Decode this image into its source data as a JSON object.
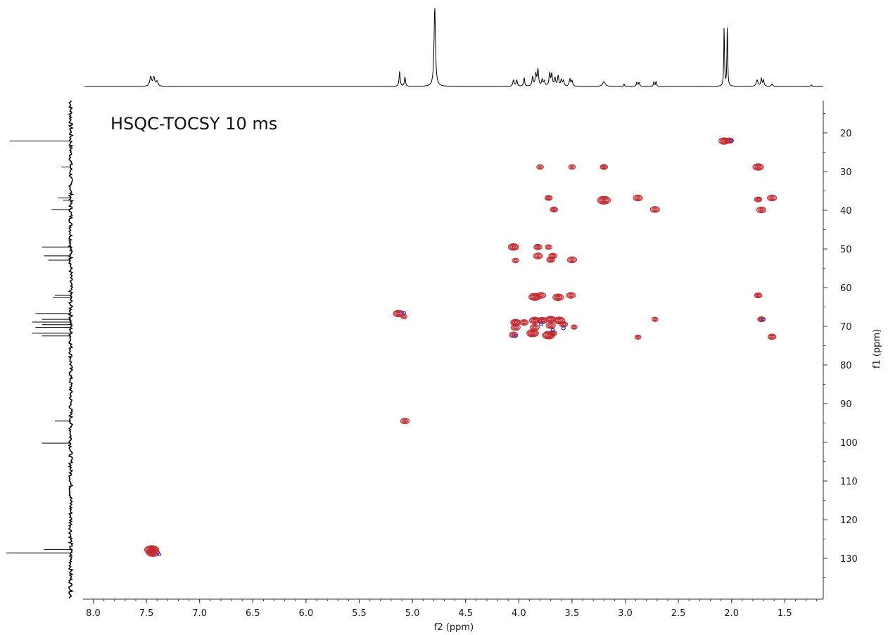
{
  "chart_data": {
    "type": "scatter",
    "subtype": "2D NMR contour plot with projection spectra",
    "title": "HSQC-TOCSY 10 ms",
    "xlabel": "f2 (ppm)",
    "ylabel": "f1 (ppm)",
    "xlim": [
      8.1,
      1.2
    ],
    "ylim": [
      140,
      11
    ],
    "x_reversed": true,
    "x_ticks": [
      8.0,
      7.5,
      7.0,
      6.5,
      6.0,
      5.5,
      5.0,
      4.5,
      4.0,
      3.5,
      3.0,
      2.5,
      2.0,
      1.5
    ],
    "x_tick_labels": [
      "8.0",
      "7.5",
      "7.0",
      "6.5",
      "6.0",
      "5.5",
      "5.0",
      "4.5",
      "4.0",
      "3.5",
      "3.0",
      "2.5",
      "2.0",
      "1.5"
    ],
    "y_ticks": [
      20,
      30,
      40,
      50,
      60,
      70,
      80,
      90,
      100,
      110,
      120,
      130
    ],
    "y_tick_labels": [
      "20",
      "30",
      "40",
      "50",
      "60",
      "70",
      "80",
      "90",
      "100",
      "110",
      "120",
      "130"
    ],
    "grid": false,
    "colors": {
      "positive": "#c0272d",
      "negative": "#2b2bd9",
      "spectrum": "#000000"
    },
    "cross_peaks": [
      {
        "x": 2.07,
        "y": 22.1,
        "s": 1.0
      },
      {
        "x": 2.02,
        "y": 22.0,
        "s": 0.6
      },
      {
        "x": 3.8,
        "y": 28.8,
        "s": 0.4
      },
      {
        "x": 3.5,
        "y": 28.8,
        "s": 0.4
      },
      {
        "x": 3.2,
        "y": 28.8,
        "s": 0.5
      },
      {
        "x": 1.75,
        "y": 28.8,
        "s": 1.0
      },
      {
        "x": 3.72,
        "y": 36.8,
        "s": 0.5
      },
      {
        "x": 3.2,
        "y": 37.4,
        "s": 1.4
      },
      {
        "x": 2.88,
        "y": 36.8,
        "s": 0.8
      },
      {
        "x": 1.75,
        "y": 37.2,
        "s": 0.5
      },
      {
        "x": 1.62,
        "y": 36.8,
        "s": 0.8
      },
      {
        "x": 3.67,
        "y": 39.8,
        "s": 0.5
      },
      {
        "x": 2.72,
        "y": 39.8,
        "s": 0.8
      },
      {
        "x": 1.72,
        "y": 39.9,
        "s": 0.8
      },
      {
        "x": 4.05,
        "y": 49.5,
        "s": 1.0
      },
      {
        "x": 3.82,
        "y": 49.5,
        "s": 0.6
      },
      {
        "x": 3.72,
        "y": 49.5,
        "s": 0.4
      },
      {
        "x": 4.03,
        "y": 53.0,
        "s": 0.4
      },
      {
        "x": 3.82,
        "y": 51.8,
        "s": 0.8
      },
      {
        "x": 3.68,
        "y": 51.8,
        "s": 0.6
      },
      {
        "x": 3.7,
        "y": 52.8,
        "s": 0.6
      },
      {
        "x": 3.5,
        "y": 52.8,
        "s": 0.8
      },
      {
        "x": 3.85,
        "y": 62.4,
        "s": 1.2
      },
      {
        "x": 3.79,
        "y": 62.0,
        "s": 0.8
      },
      {
        "x": 3.63,
        "y": 62.5,
        "s": 1.0
      },
      {
        "x": 3.51,
        "y": 62.0,
        "s": 0.8
      },
      {
        "x": 1.75,
        "y": 62.0,
        "s": 0.5
      },
      {
        "x": 5.13,
        "y": 66.7,
        "s": 1.0
      },
      {
        "x": 5.08,
        "y": 67.5,
        "s": 0.3
      },
      {
        "x": 4.03,
        "y": 69.0,
        "s": 0.9
      },
      {
        "x": 3.95,
        "y": 69.0,
        "s": 0.7
      },
      {
        "x": 3.85,
        "y": 68.5,
        "s": 1.0
      },
      {
        "x": 3.78,
        "y": 68.5,
        "s": 0.9
      },
      {
        "x": 3.7,
        "y": 68.2,
        "s": 0.9
      },
      {
        "x": 3.62,
        "y": 68.5,
        "s": 1.1
      },
      {
        "x": 3.58,
        "y": 69.5,
        "s": 0.6
      },
      {
        "x": 3.48,
        "y": 70.2,
        "s": 0.3
      },
      {
        "x": 4.03,
        "y": 70.3,
        "s": 0.8
      },
      {
        "x": 3.85,
        "y": 70.3,
        "s": 0.8
      },
      {
        "x": 3.7,
        "y": 69.8,
        "s": 0.8
      },
      {
        "x": 2.72,
        "y": 68.2,
        "s": 0.3
      },
      {
        "x": 1.72,
        "y": 68.2,
        "s": 0.5
      },
      {
        "x": 4.05,
        "y": 72.2,
        "s": 0.7
      },
      {
        "x": 3.87,
        "y": 71.8,
        "s": 1.2
      },
      {
        "x": 3.72,
        "y": 72.3,
        "s": 1.3
      },
      {
        "x": 3.68,
        "y": 71.8,
        "s": 0.6
      },
      {
        "x": 2.88,
        "y": 72.8,
        "s": 0.3
      },
      {
        "x": 1.62,
        "y": 72.7,
        "s": 0.6
      },
      {
        "x": 5.07,
        "y": 94.5,
        "s": 0.7
      },
      {
        "x": 7.45,
        "y": 127.8,
        "s": 1.6
      },
      {
        "x": 7.44,
        "y": 128.5,
        "s": 1.4
      }
    ],
    "negative_peaks": [
      {
        "x": 2.0,
        "y": 22.0
      },
      {
        "x": 5.08,
        "y": 66.5
      },
      {
        "x": 4.03,
        "y": 72.5
      },
      {
        "x": 3.79,
        "y": 69.5
      },
      {
        "x": 3.58,
        "y": 70.5
      },
      {
        "x": 1.7,
        "y": 68.2
      },
      {
        "x": 7.38,
        "y": 129.0
      },
      {
        "x": 3.68,
        "y": 71.0
      }
    ],
    "f2_projection_peaks": [
      {
        "x": 7.46,
        "h": 0.12,
        "w": 0.01
      },
      {
        "x": 7.43,
        "h": 0.11,
        "w": 0.01
      },
      {
        "x": 7.4,
        "h": 0.06,
        "w": 0.01
      },
      {
        "x": 5.12,
        "h": 0.19,
        "w": 0.006
      },
      {
        "x": 5.07,
        "h": 0.12,
        "w": 0.006
      },
      {
        "x": 4.79,
        "h": 1.0,
        "w": 0.008
      },
      {
        "x": 4.05,
        "h": 0.08,
        "w": 0.007
      },
      {
        "x": 4.02,
        "h": 0.08,
        "w": 0.007
      },
      {
        "x": 3.95,
        "h": 0.11,
        "w": 0.006
      },
      {
        "x": 3.87,
        "h": 0.12,
        "w": 0.007
      },
      {
        "x": 3.84,
        "h": 0.15,
        "w": 0.007
      },
      {
        "x": 3.82,
        "h": 0.21,
        "w": 0.007
      },
      {
        "x": 3.78,
        "h": 0.08,
        "w": 0.007
      },
      {
        "x": 3.76,
        "h": 0.06,
        "w": 0.007
      },
      {
        "x": 3.71,
        "h": 0.16,
        "w": 0.007
      },
      {
        "x": 3.69,
        "h": 0.15,
        "w": 0.007
      },
      {
        "x": 3.66,
        "h": 0.1,
        "w": 0.007
      },
      {
        "x": 3.63,
        "h": 0.13,
        "w": 0.007
      },
      {
        "x": 3.6,
        "h": 0.08,
        "w": 0.007
      },
      {
        "x": 3.58,
        "h": 0.07,
        "w": 0.007
      },
      {
        "x": 3.52,
        "h": 0.09,
        "w": 0.007
      },
      {
        "x": 3.5,
        "h": 0.07,
        "w": 0.007
      },
      {
        "x": 3.2,
        "h": 0.06,
        "w": 0.015
      },
      {
        "x": 3.01,
        "h": 0.03,
        "w": 0.004
      },
      {
        "x": 2.89,
        "h": 0.05,
        "w": 0.006
      },
      {
        "x": 2.87,
        "h": 0.05,
        "w": 0.006
      },
      {
        "x": 2.73,
        "h": 0.06,
        "w": 0.005
      },
      {
        "x": 2.71,
        "h": 0.06,
        "w": 0.005
      },
      {
        "x": 2.07,
        "h": 0.75,
        "w": 0.004
      },
      {
        "x": 2.04,
        "h": 0.77,
        "w": 0.004
      },
      {
        "x": 1.76,
        "h": 0.08,
        "w": 0.01
      },
      {
        "x": 1.72,
        "h": 0.1,
        "w": 0.006
      },
      {
        "x": 1.7,
        "h": 0.08,
        "w": 0.006
      },
      {
        "x": 1.62,
        "h": 0.03,
        "w": 0.008
      },
      {
        "x": 1.25,
        "h": 0.02,
        "w": 0.006
      }
    ],
    "f1_projection_peaks": [
      {
        "y": 22.1,
        "h": 0.95
      },
      {
        "y": 28.8,
        "h": 0.15
      },
      {
        "y": 36.8,
        "h": 0.2
      },
      {
        "y": 37.4,
        "h": 0.12
      },
      {
        "y": 39.8,
        "h": 0.3
      },
      {
        "y": 49.5,
        "h": 0.45
      },
      {
        "y": 51.8,
        "h": 0.42
      },
      {
        "y": 52.9,
        "h": 0.35
      },
      {
        "y": 62.0,
        "h": 0.25
      },
      {
        "y": 62.6,
        "h": 0.28
      },
      {
        "y": 66.7,
        "h": 0.55
      },
      {
        "y": 68.2,
        "h": 0.45
      },
      {
        "y": 68.9,
        "h": 0.6
      },
      {
        "y": 69.6,
        "h": 0.45
      },
      {
        "y": 70.3,
        "h": 0.55
      },
      {
        "y": 71.8,
        "h": 0.6
      },
      {
        "y": 72.5,
        "h": 0.45
      },
      {
        "y": 94.5,
        "h": 0.25
      },
      {
        "y": 100.2,
        "h": 0.45
      },
      {
        "y": 127.7,
        "h": 0.42
      },
      {
        "y": 128.6,
        "h": 1.0
      }
    ]
  }
}
